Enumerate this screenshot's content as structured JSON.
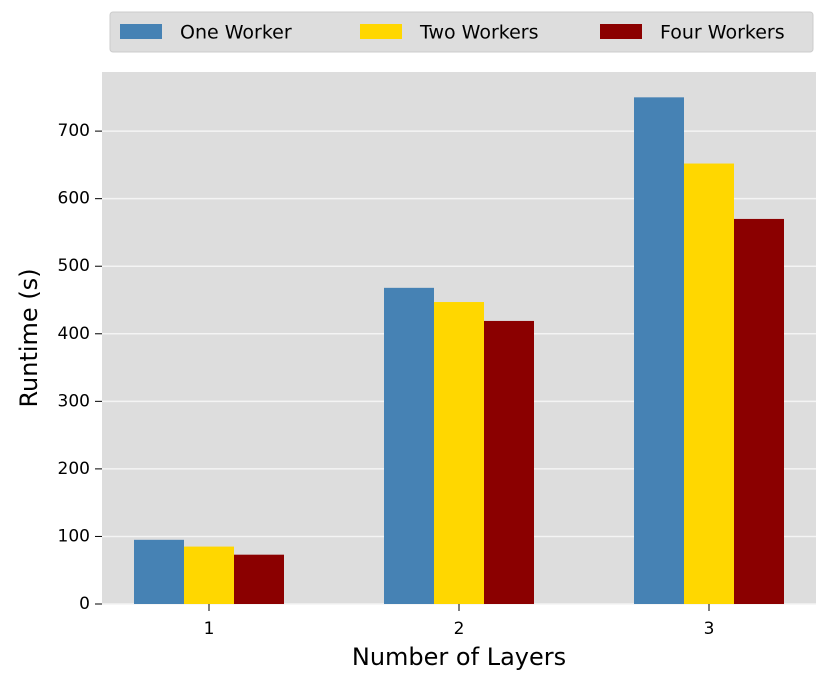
{
  "chart_data": {
    "type": "bar",
    "x_label": "Number of Layers",
    "y_label": "Runtime (s)",
    "categories": [
      "1",
      "2",
      "3"
    ],
    "series": [
      {
        "name": "One Worker",
        "color": "#4682b4",
        "values": [
          95,
          468,
          750
        ]
      },
      {
        "name": "Two Workers",
        "color": "#ffd700",
        "values": [
          85,
          447,
          652
        ]
      },
      {
        "name": "Four Workers",
        "color": "#8b0000",
        "values": [
          73,
          419,
          570
        ]
      }
    ],
    "ylim": [
      0,
      787.5
    ],
    "yticks": [
      0,
      100,
      200,
      300,
      400,
      500,
      600,
      700
    ],
    "grid": true,
    "legend": "top"
  }
}
